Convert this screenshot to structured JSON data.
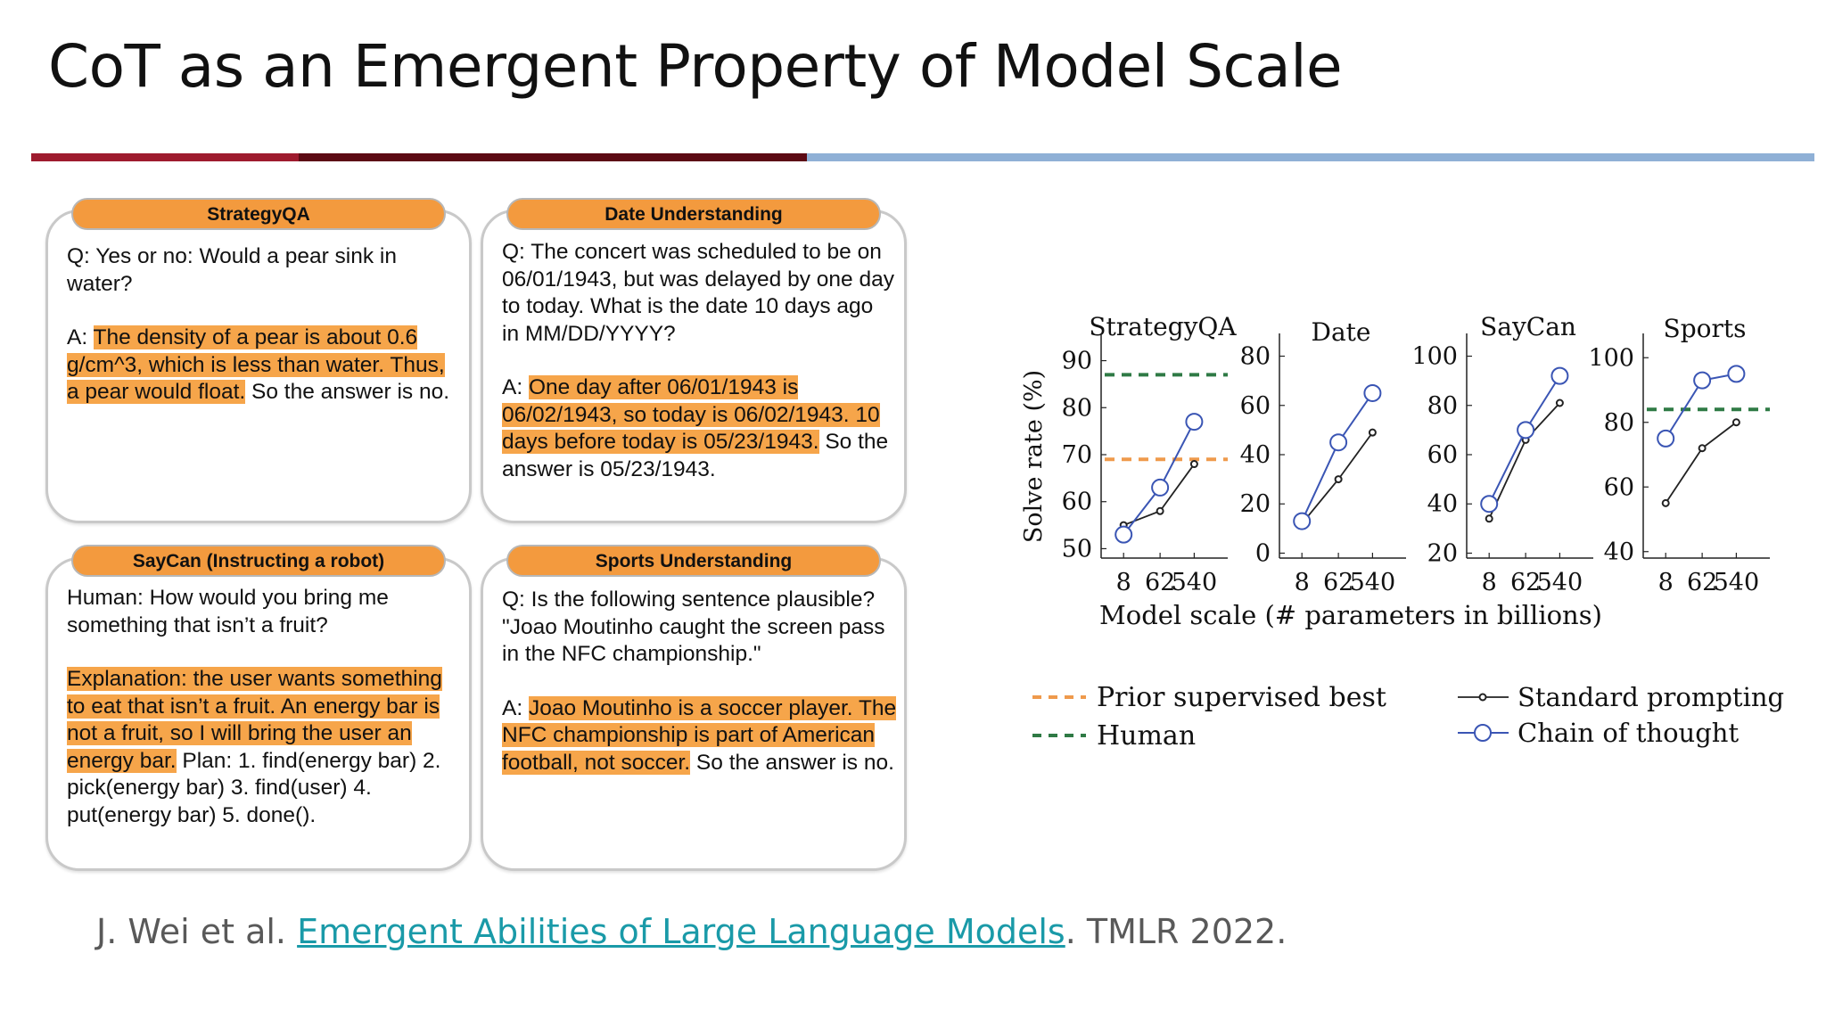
{
  "title": "CoT as an Emergent Property of Model Scale",
  "colors": {
    "divider_red": "#9e1b2e",
    "divider_dark": "#5c0a14",
    "divider_blue": "#8fb0d6",
    "tab_orange": "#f39a3e",
    "highlight": "#f6a54a"
  },
  "cards": [
    {
      "tab": "StrategyQA",
      "q": "Q: Yes or no: Would a pear sink in water?",
      "a_prefix": "A: ",
      "a_hl": "The density of a pear is about 0.6 g/cm^3, which is less than water. Thus, a pear would float.",
      "a_rest": " So the answer is no."
    },
    {
      "tab": "Date Understanding",
      "q": "Q: The concert was scheduled to be on 06/01/1943, but was delayed by one day to today. What is the date 10 days ago in MM/DD/YYYY?",
      "a_prefix": "A: ",
      "a_hl": "One day after 06/01/1943 is 06/02/1943, so today is 06/02/1943. 10 days before today is 05/23/1943.",
      "a_rest": " So the answer is 05/23/1943."
    },
    {
      "tab": "SayCan (Instructing a robot)",
      "q": "Human: How would you bring me something that isn’t a fruit?",
      "a_prefix": "",
      "a_hl": "Explanation: the user wants something to eat that isn’t a fruit. An energy bar is not a fruit, so I will bring the user an energy bar.",
      "a_rest": " Plan: 1. find(energy bar) 2. pick(energy bar) 3. find(user) 4. put(energy bar) 5. done()."
    },
    {
      "tab": "Sports Understanding",
      "q": "Q: Is the following sentence plausible? \"Joao Moutinho caught the screen pass in the NFC championship.\"",
      "a_prefix": "A: ",
      "a_hl": "Joao Moutinho is a soccer player. The NFC championship is part of American football, not soccer.",
      "a_rest": " So the answer is no."
    }
  ],
  "chart_data": {
    "type": "line",
    "ylabel": "Solve rate (%)",
    "xlabel": "Model scale (# parameters in billions)",
    "x": [
      "8",
      "62",
      "540"
    ],
    "panels": [
      {
        "title": "StrategyQA",
        "ylim": [
          48,
          92
        ],
        "yticks": [
          50,
          60,
          70,
          80,
          90
        ],
        "series": [
          {
            "name": "Standard prompting",
            "values": [
              55,
              58,
              68
            ]
          },
          {
            "name": "Chain of thought",
            "values": [
              53,
              63,
              77
            ]
          }
        ],
        "prior_best": 69,
        "human": 87
      },
      {
        "title": "Date",
        "ylim": [
          -2,
          82
        ],
        "yticks": [
          0,
          20,
          40,
          60,
          80
        ],
        "series": [
          {
            "name": "Standard prompting",
            "values": [
              12,
              30,
              49
            ]
          },
          {
            "name": "Chain of thought",
            "values": [
              13,
              45,
              65
            ]
          }
        ]
      },
      {
        "title": "SayCan",
        "ylim": [
          18,
          102
        ],
        "yticks": [
          20,
          40,
          60,
          80,
          100
        ],
        "series": [
          {
            "name": "Standard prompting",
            "values": [
              34,
              66,
              81
            ]
          },
          {
            "name": "Chain of thought",
            "values": [
              40,
              70,
              92
            ]
          }
        ]
      },
      {
        "title": "Sports",
        "ylim": [
          38,
          102
        ],
        "yticks": [
          40,
          60,
          80,
          100
        ],
        "series": [
          {
            "name": "Standard prompting",
            "values": [
              55,
              72,
              80
            ]
          },
          {
            "name": "Chain of thought",
            "values": [
              75,
              93,
              95
            ]
          }
        ],
        "human": 84
      }
    ],
    "legend": [
      {
        "label": "Prior supervised best",
        "style": "dash",
        "color": "#ef9a4c"
      },
      {
        "label": "Human",
        "style": "dash",
        "color": "#2f7a45"
      },
      {
        "label": "Standard prompting",
        "style": "dot-line",
        "color": "#222222"
      },
      {
        "label": "Chain of thought",
        "style": "circle-line",
        "color": "#3a55b4"
      }
    ],
    "colors": {
      "standard": "#222222",
      "cot": "#3a55b4",
      "prior": "#ef9a4c",
      "human": "#2f7a45"
    }
  },
  "citation": {
    "prefix": "J. Wei et al. ",
    "link": "Emergent Abilities of Large Language Models",
    "suffix": ". TMLR 2022."
  }
}
